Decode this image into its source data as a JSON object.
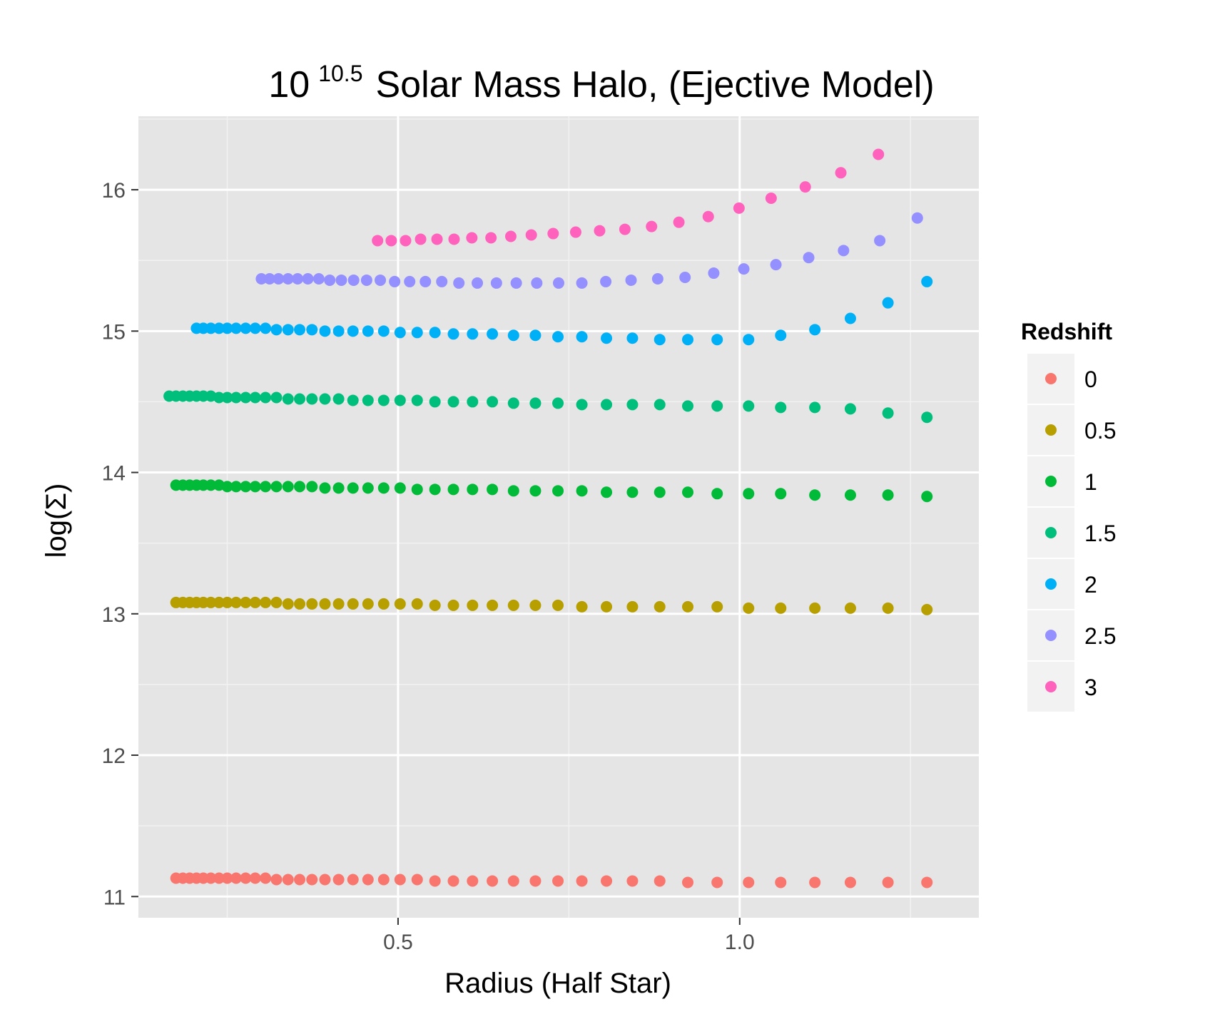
{
  "chart_data": {
    "type": "scatter",
    "title": {
      "base": "10",
      "superscript": "10.5",
      "rest": "Solar Mass Halo, (Ejective Model)"
    },
    "xlabel": "Radius (Half Star)",
    "ylabel": "log(Σ)",
    "xlim": [
      0.12,
      1.35
    ],
    "ylim": [
      10.85,
      16.52
    ],
    "x_ticks": [
      {
        "value": 0.5,
        "label": "0.5"
      },
      {
        "value": 1.0,
        "label": "1.0"
      }
    ],
    "x_minor_ticks": [
      0.25,
      0.75,
      1.25
    ],
    "y_ticks": [
      {
        "value": 11,
        "label": "11"
      },
      {
        "value": 12,
        "label": "12"
      },
      {
        "value": 13,
        "label": "13"
      },
      {
        "value": 14,
        "label": "14"
      },
      {
        "value": 15,
        "label": "15"
      },
      {
        "value": 16,
        "label": "16"
      }
    ],
    "y_minor_ticks": [
      11.5,
      12.5,
      13.5,
      14.5,
      15.5,
      16.5
    ],
    "grid": true,
    "legend": {
      "title": "Redshift",
      "position": "right"
    },
    "series": [
      {
        "name": "0",
        "color": "#F8766D",
        "x": [
          0.175,
          0.185,
          0.195,
          0.205,
          0.215,
          0.226,
          0.238,
          0.25,
          0.263,
          0.277,
          0.291,
          0.306,
          0.322,
          0.339,
          0.356,
          0.374,
          0.393,
          0.413,
          0.434,
          0.456,
          0.479,
          0.503,
          0.528,
          0.554,
          0.581,
          0.609,
          0.638,
          0.669,
          0.701,
          0.734,
          0.769,
          0.805,
          0.843,
          0.883,
          0.924,
          0.967,
          1.013,
          1.06,
          1.11,
          1.162,
          1.217,
          1.274
        ],
        "y": [
          11.13,
          11.13,
          11.13,
          11.13,
          11.13,
          11.13,
          11.13,
          11.13,
          11.13,
          11.13,
          11.13,
          11.13,
          11.12,
          11.12,
          11.12,
          11.12,
          11.12,
          11.12,
          11.12,
          11.12,
          11.12,
          11.12,
          11.12,
          11.11,
          11.11,
          11.11,
          11.11,
          11.11,
          11.11,
          11.11,
          11.11,
          11.11,
          11.11,
          11.11,
          11.1,
          11.1,
          11.1,
          11.1,
          11.1,
          11.1,
          11.1,
          11.1
        ]
      },
      {
        "name": "0.5",
        "color": "#B79F00",
        "x": [
          0.175,
          0.185,
          0.195,
          0.205,
          0.215,
          0.226,
          0.238,
          0.25,
          0.263,
          0.277,
          0.291,
          0.306,
          0.322,
          0.339,
          0.356,
          0.374,
          0.393,
          0.413,
          0.434,
          0.456,
          0.479,
          0.503,
          0.528,
          0.554,
          0.581,
          0.609,
          0.638,
          0.669,
          0.701,
          0.734,
          0.769,
          0.805,
          0.843,
          0.883,
          0.924,
          0.967,
          1.013,
          1.06,
          1.11,
          1.162,
          1.217,
          1.274
        ],
        "y": [
          13.08,
          13.08,
          13.08,
          13.08,
          13.08,
          13.08,
          13.08,
          13.08,
          13.08,
          13.08,
          13.08,
          13.08,
          13.08,
          13.07,
          13.07,
          13.07,
          13.07,
          13.07,
          13.07,
          13.07,
          13.07,
          13.07,
          13.07,
          13.06,
          13.06,
          13.06,
          13.06,
          13.06,
          13.06,
          13.06,
          13.05,
          13.05,
          13.05,
          13.05,
          13.05,
          13.05,
          13.04,
          13.04,
          13.04,
          13.04,
          13.04,
          13.03
        ]
      },
      {
        "name": "1",
        "color": "#00BA38",
        "x": [
          0.175,
          0.185,
          0.195,
          0.205,
          0.215,
          0.226,
          0.238,
          0.25,
          0.263,
          0.277,
          0.291,
          0.306,
          0.322,
          0.339,
          0.356,
          0.374,
          0.393,
          0.413,
          0.434,
          0.456,
          0.479,
          0.503,
          0.528,
          0.554,
          0.581,
          0.609,
          0.638,
          0.669,
          0.701,
          0.734,
          0.769,
          0.805,
          0.843,
          0.883,
          0.924,
          0.967,
          1.013,
          1.06,
          1.11,
          1.162,
          1.217,
          1.274
        ],
        "y": [
          13.91,
          13.91,
          13.91,
          13.91,
          13.91,
          13.91,
          13.91,
          13.9,
          13.9,
          13.9,
          13.9,
          13.9,
          13.9,
          13.9,
          13.9,
          13.9,
          13.89,
          13.89,
          13.89,
          13.89,
          13.89,
          13.89,
          13.88,
          13.88,
          13.88,
          13.88,
          13.88,
          13.87,
          13.87,
          13.87,
          13.87,
          13.86,
          13.86,
          13.86,
          13.86,
          13.85,
          13.85,
          13.85,
          13.84,
          13.84,
          13.84,
          13.83
        ]
      },
      {
        "name": "1.5",
        "color": "#00BF7D",
        "x": [
          0.165,
          0.175,
          0.185,
          0.195,
          0.205,
          0.215,
          0.226,
          0.238,
          0.25,
          0.263,
          0.277,
          0.291,
          0.306,
          0.322,
          0.339,
          0.356,
          0.374,
          0.393,
          0.413,
          0.434,
          0.456,
          0.479,
          0.503,
          0.528,
          0.554,
          0.581,
          0.609,
          0.638,
          0.669,
          0.701,
          0.734,
          0.769,
          0.805,
          0.843,
          0.883,
          0.924,
          0.967,
          1.013,
          1.06,
          1.11,
          1.162,
          1.217,
          1.274
        ],
        "y": [
          14.54,
          14.54,
          14.54,
          14.54,
          14.54,
          14.54,
          14.54,
          14.53,
          14.53,
          14.53,
          14.53,
          14.53,
          14.53,
          14.53,
          14.52,
          14.52,
          14.52,
          14.52,
          14.52,
          14.51,
          14.51,
          14.51,
          14.51,
          14.51,
          14.5,
          14.5,
          14.5,
          14.5,
          14.49,
          14.49,
          14.49,
          14.48,
          14.48,
          14.48,
          14.48,
          14.47,
          14.47,
          14.47,
          14.46,
          14.46,
          14.45,
          14.42,
          14.39
        ]
      },
      {
        "name": "2",
        "color": "#00B0F6",
        "x": [
          0.205,
          0.215,
          0.226,
          0.238,
          0.25,
          0.263,
          0.277,
          0.291,
          0.306,
          0.322,
          0.339,
          0.356,
          0.374,
          0.393,
          0.413,
          0.434,
          0.456,
          0.479,
          0.503,
          0.528,
          0.554,
          0.581,
          0.609,
          0.638,
          0.669,
          0.701,
          0.734,
          0.769,
          0.805,
          0.843,
          0.883,
          0.924,
          0.967,
          1.013,
          1.06,
          1.11,
          1.162,
          1.217,
          1.274
        ],
        "y": [
          15.02,
          15.02,
          15.02,
          15.02,
          15.02,
          15.02,
          15.02,
          15.02,
          15.02,
          15.01,
          15.01,
          15.01,
          15.01,
          15.0,
          15.0,
          15.0,
          15.0,
          15.0,
          14.99,
          14.99,
          14.99,
          14.98,
          14.98,
          14.98,
          14.97,
          14.97,
          14.96,
          14.96,
          14.95,
          14.95,
          14.94,
          14.94,
          14.94,
          14.94,
          14.97,
          15.01,
          15.09,
          15.2,
          15.35
        ]
      },
      {
        "name": "2.5",
        "color": "#9590FF",
        "x": [
          0.3,
          0.312,
          0.325,
          0.339,
          0.353,
          0.368,
          0.384,
          0.4,
          0.417,
          0.435,
          0.454,
          0.474,
          0.495,
          0.517,
          0.54,
          0.564,
          0.589,
          0.616,
          0.644,
          0.673,
          0.703,
          0.735,
          0.769,
          0.804,
          0.841,
          0.88,
          0.92,
          0.962,
          1.006,
          1.053,
          1.101,
          1.152,
          1.205,
          1.26
        ],
        "y": [
          15.37,
          15.37,
          15.37,
          15.37,
          15.37,
          15.37,
          15.37,
          15.36,
          15.36,
          15.36,
          15.36,
          15.36,
          15.35,
          15.35,
          15.35,
          15.35,
          15.34,
          15.34,
          15.34,
          15.34,
          15.34,
          15.34,
          15.34,
          15.35,
          15.36,
          15.37,
          15.38,
          15.41,
          15.44,
          15.47,
          15.52,
          15.57,
          15.64,
          15.8
        ]
      },
      {
        "name": "3",
        "color": "#FF62BC",
        "x": [
          0.47,
          0.49,
          0.511,
          0.533,
          0.557,
          0.582,
          0.608,
          0.636,
          0.665,
          0.695,
          0.727,
          0.76,
          0.795,
          0.832,
          0.871,
          0.911,
          0.954,
          0.999,
          1.046,
          1.096,
          1.148,
          1.203
        ],
        "y": [
          15.64,
          15.64,
          15.64,
          15.65,
          15.65,
          15.65,
          15.66,
          15.66,
          15.67,
          15.68,
          15.69,
          15.7,
          15.71,
          15.72,
          15.74,
          15.77,
          15.81,
          15.87,
          15.94,
          16.02,
          16.12,
          16.25
        ]
      }
    ]
  }
}
